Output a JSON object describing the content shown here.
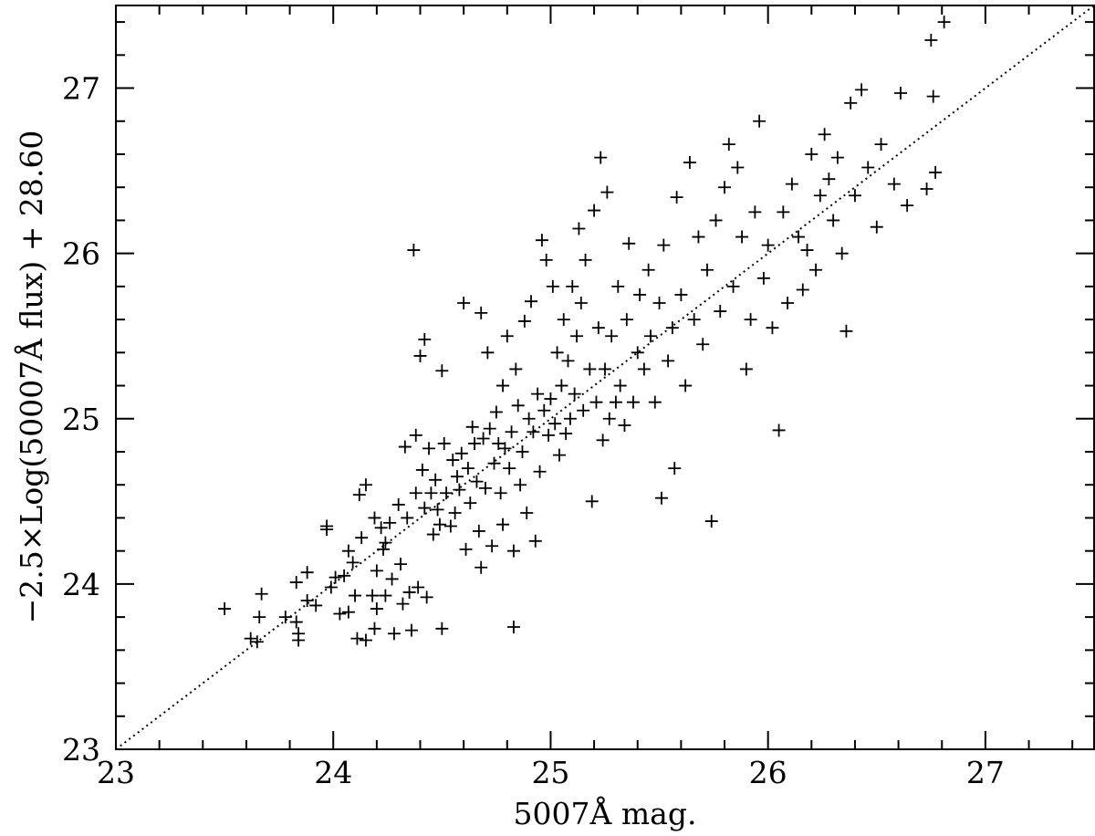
{
  "chart_data": {
    "type": "scatter",
    "xlabel": "5007Å mag.",
    "ylabel": "−2.5×Log(50007Å flux) + 28.60",
    "xlim": [
      23,
      27.5
    ],
    "ylim": [
      23,
      27.5
    ],
    "x_ticks": [
      23,
      24,
      25,
      26,
      27
    ],
    "y_ticks": [
      23,
      24,
      25,
      26,
      27
    ],
    "x_tick_labels": [
      "23",
      "24",
      "25",
      "26",
      "27"
    ],
    "y_tick_labels": [
      "23",
      "24",
      "25",
      "26",
      "27"
    ],
    "minor_tick_step": 0.2,
    "marker": "plus",
    "reference_line": {
      "style": "dotted",
      "from": [
        23,
        23
      ],
      "to": [
        27.5,
        27.5
      ]
    },
    "grid": false,
    "points": [
      [
        23.5,
        23.85
      ],
      [
        23.62,
        23.67
      ],
      [
        23.65,
        23.65
      ],
      [
        23.66,
        23.8
      ],
      [
        23.67,
        23.94
      ],
      [
        23.78,
        23.8
      ],
      [
        23.83,
        23.77
      ],
      [
        23.84,
        23.7
      ],
      [
        23.84,
        23.66
      ],
      [
        23.83,
        24.01
      ],
      [
        23.88,
        24.07
      ],
      [
        23.88,
        23.9
      ],
      [
        23.92,
        23.87
      ],
      [
        23.97,
        24.35
      ],
      [
        23.97,
        24.33
      ],
      [
        23.99,
        23.98
      ],
      [
        24.01,
        24.04
      ],
      [
        24.03,
        23.82
      ],
      [
        24.05,
        24.05
      ],
      [
        24.07,
        24.2
      ],
      [
        24.07,
        23.83
      ],
      [
        24.09,
        24.13
      ],
      [
        24.1,
        23.93
      ],
      [
        24.11,
        23.67
      ],
      [
        24.12,
        24.54
      ],
      [
        24.13,
        24.28
      ],
      [
        24.15,
        24.6
      ],
      [
        24.15,
        23.66
      ],
      [
        24.18,
        23.93
      ],
      [
        24.19,
        24.4
      ],
      [
        24.19,
        23.73
      ],
      [
        24.2,
        24.08
      ],
      [
        24.2,
        23.85
      ],
      [
        24.22,
        24.34
      ],
      [
        24.23,
        24.21
      ],
      [
        24.24,
        24.25
      ],
      [
        24.24,
        23.93
      ],
      [
        24.26,
        24.37
      ],
      [
        24.27,
        24.03
      ],
      [
        24.28,
        23.7
      ],
      [
        24.3,
        24.48
      ],
      [
        24.31,
        24.12
      ],
      [
        24.32,
        23.88
      ],
      [
        24.33,
        24.83
      ],
      [
        24.34,
        24.4
      ],
      [
        24.35,
        23.95
      ],
      [
        24.36,
        23.72
      ],
      [
        24.37,
        26.02
      ],
      [
        24.38,
        24.9
      ],
      [
        24.38,
        24.55
      ],
      [
        24.39,
        23.98
      ],
      [
        24.4,
        25.38
      ],
      [
        24.41,
        24.69
      ],
      [
        24.42,
        25.48
      ],
      [
        24.42,
        24.46
      ],
      [
        24.43,
        23.92
      ],
      [
        24.44,
        24.82
      ],
      [
        24.45,
        24.55
      ],
      [
        24.46,
        24.3
      ],
      [
        24.47,
        24.63
      ],
      [
        24.48,
        24.45
      ],
      [
        24.49,
        24.36
      ],
      [
        24.5,
        25.29
      ],
      [
        24.5,
        23.73
      ],
      [
        24.51,
        24.85
      ],
      [
        24.52,
        24.55
      ],
      [
        24.54,
        24.35
      ],
      [
        24.55,
        24.75
      ],
      [
        24.56,
        24.43
      ],
      [
        24.57,
        24.65
      ],
      [
        24.58,
        24.57
      ],
      [
        24.59,
        24.79
      ],
      [
        24.6,
        25.7
      ],
      [
        24.61,
        24.21
      ],
      [
        24.62,
        24.7
      ],
      [
        24.63,
        24.49
      ],
      [
        24.64,
        24.95
      ],
      [
        24.65,
        24.85
      ],
      [
        24.66,
        24.62
      ],
      [
        24.67,
        24.32
      ],
      [
        24.68,
        25.64
      ],
      [
        24.68,
        24.1
      ],
      [
        24.69,
        24.88
      ],
      [
        24.7,
        24.58
      ],
      [
        24.71,
        25.4
      ],
      [
        24.72,
        24.94
      ],
      [
        24.73,
        24.23
      ],
      [
        24.74,
        24.73
      ],
      [
        24.75,
        25.04
      ],
      [
        24.76,
        24.85
      ],
      [
        24.77,
        24.55
      ],
      [
        24.78,
        25.2
      ],
      [
        24.78,
        24.36
      ],
      [
        24.79,
        24.82
      ],
      [
        24.8,
        25.5
      ],
      [
        24.81,
        24.7
      ],
      [
        24.82,
        24.92
      ],
      [
        24.83,
        24.2
      ],
      [
        24.83,
        23.74
      ],
      [
        24.84,
        25.3
      ],
      [
        24.85,
        25.08
      ],
      [
        24.86,
        24.6
      ],
      [
        24.87,
        24.8
      ],
      [
        24.88,
        25.59
      ],
      [
        24.89,
        24.43
      ],
      [
        24.9,
        25.0
      ],
      [
        24.91,
        25.71
      ],
      [
        24.92,
        24.92
      ],
      [
        24.93,
        24.26
      ],
      [
        24.94,
        25.15
      ],
      [
        24.95,
        24.68
      ],
      [
        24.96,
        26.08
      ],
      [
        24.97,
        25.05
      ],
      [
        24.98,
        25.96
      ],
      [
        24.99,
        24.9
      ],
      [
        25.0,
        25.12
      ],
      [
        25.01,
        25.8
      ],
      [
        25.02,
        24.97
      ],
      [
        25.03,
        25.4
      ],
      [
        25.04,
        24.78
      ],
      [
        25.05,
        25.2
      ],
      [
        25.06,
        25.6
      ],
      [
        25.07,
        24.91
      ],
      [
        25.08,
        25.35
      ],
      [
        25.09,
        25.0
      ],
      [
        25.1,
        25.8
      ],
      [
        25.11,
        25.15
      ],
      [
        25.12,
        25.5
      ],
      [
        25.13,
        26.15
      ],
      [
        25.14,
        25.7
      ],
      [
        25.15,
        25.05
      ],
      [
        25.16,
        25.96
      ],
      [
        25.18,
        25.3
      ],
      [
        25.19,
        24.5
      ],
      [
        25.2,
        26.26
      ],
      [
        25.21,
        25.1
      ],
      [
        25.22,
        25.55
      ],
      [
        25.23,
        26.58
      ],
      [
        25.24,
        24.87
      ],
      [
        25.25,
        25.3
      ],
      [
        25.26,
        26.37
      ],
      [
        25.27,
        25.0
      ],
      [
        25.28,
        25.5
      ],
      [
        25.3,
        25.1
      ],
      [
        25.31,
        25.8
      ],
      [
        25.32,
        25.2
      ],
      [
        25.34,
        24.96
      ],
      [
        25.35,
        25.6
      ],
      [
        25.36,
        26.06
      ],
      [
        25.38,
        25.1
      ],
      [
        25.4,
        25.4
      ],
      [
        25.41,
        25.75
      ],
      [
        25.43,
        25.3
      ],
      [
        25.45,
        25.9
      ],
      [
        25.46,
        25.5
      ],
      [
        25.48,
        25.1
      ],
      [
        25.5,
        25.7
      ],
      [
        25.51,
        24.52
      ],
      [
        25.52,
        26.05
      ],
      [
        25.54,
        25.35
      ],
      [
        25.56,
        25.55
      ],
      [
        25.57,
        24.7
      ],
      [
        25.58,
        26.34
      ],
      [
        25.6,
        25.75
      ],
      [
        25.62,
        25.2
      ],
      [
        25.64,
        26.55
      ],
      [
        25.66,
        25.6
      ],
      [
        25.68,
        26.1
      ],
      [
        25.7,
        25.45
      ],
      [
        25.72,
        25.9
      ],
      [
        25.74,
        24.38
      ],
      [
        25.76,
        26.2
      ],
      [
        25.78,
        25.65
      ],
      [
        25.8,
        26.4
      ],
      [
        25.82,
        26.66
      ],
      [
        25.84,
        25.8
      ],
      [
        25.86,
        26.52
      ],
      [
        25.88,
        26.1
      ],
      [
        25.9,
        25.3
      ],
      [
        25.92,
        25.6
      ],
      [
        25.94,
        26.25
      ],
      [
        25.96,
        26.8
      ],
      [
        25.98,
        25.85
      ],
      [
        26.0,
        26.05
      ],
      [
        26.02,
        25.55
      ],
      [
        26.05,
        24.93
      ],
      [
        26.07,
        26.25
      ],
      [
        26.09,
        25.7
      ],
      [
        26.11,
        26.42
      ],
      [
        26.14,
        26.1
      ],
      [
        26.16,
        25.78
      ],
      [
        26.18,
        26.02
      ],
      [
        26.2,
        26.6
      ],
      [
        26.22,
        25.9
      ],
      [
        26.24,
        26.35
      ],
      [
        26.26,
        26.72
      ],
      [
        26.28,
        26.45
      ],
      [
        26.3,
        26.2
      ],
      [
        26.32,
        26.58
      ],
      [
        26.34,
        26.0
      ],
      [
        26.36,
        25.53
      ],
      [
        26.38,
        26.91
      ],
      [
        26.4,
        26.35
      ],
      [
        26.43,
        26.99
      ],
      [
        26.46,
        26.52
      ],
      [
        26.5,
        26.16
      ],
      [
        26.52,
        26.66
      ],
      [
        26.58,
        26.42
      ],
      [
        26.61,
        26.97
      ],
      [
        26.64,
        26.29
      ],
      [
        26.73,
        26.39
      ],
      [
        26.75,
        27.29
      ],
      [
        26.76,
        26.95
      ],
      [
        26.77,
        26.49
      ],
      [
        26.81,
        27.4
      ]
    ]
  }
}
